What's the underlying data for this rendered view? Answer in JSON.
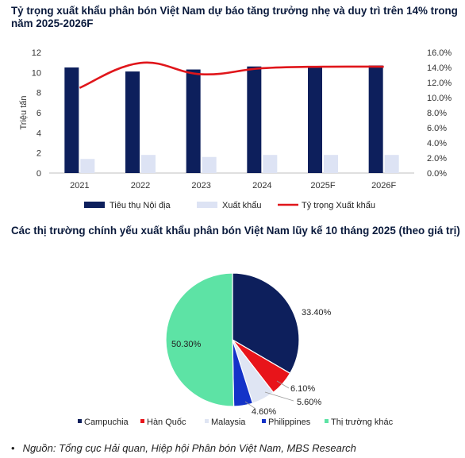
{
  "charts": {
    "title1": "Tỷ trọng xuất khẩu phân bón Việt Nam dự báo tăng trưởng nhẹ và duy trì trên 14% trong năm 2025-2026F",
    "title2": "Các thị trường chính yếu xuất khẩu phân bón Việt Nam lũy kế 10 tháng 2025 (theo giá trị)"
  },
  "source": {
    "bullet": "•",
    "text": "Nguồn: Tổng cục Hải quan, Hiệp hội Phân bón Việt Nam, MBS Research"
  },
  "colors": {
    "navy": "#0d1f5c",
    "light": "#dde3f4",
    "red": "#e0161b",
    "cambodia": "#0d1f5c",
    "korea": "#e8141a",
    "malaysia": "#dfe5f3",
    "philippines": "#1433c8",
    "others": "#5de3a5"
  },
  "chart_data": [
    {
      "type": "bar",
      "categories": [
        "2021",
        "2022",
        "2023",
        "2024",
        "2025F",
        "2026F"
      ],
      "ylabel": "Triệu tấn",
      "ylim": [
        0,
        12
      ],
      "yticks": [
        "0",
        "2",
        "4",
        "6",
        "8",
        "10",
        "12"
      ],
      "y2lim": [
        0,
        16
      ],
      "y2ticks": [
        "0.0%",
        "2.0%",
        "4.0%",
        "6.0%",
        "8.0%",
        "10.0%",
        "12.0%",
        "14.0%",
        "16.0%"
      ],
      "series": [
        {
          "name": "Tiêu thụ Nội địa",
          "kind": "bar",
          "values": [
            10.5,
            10.1,
            10.3,
            10.6,
            10.5,
            10.7
          ]
        },
        {
          "name": "Xuất khẩu",
          "kind": "bar",
          "values": [
            1.4,
            1.8,
            1.6,
            1.8,
            1.8,
            1.8
          ]
        },
        {
          "name": "Tỷ trọng Xuất khẩu",
          "kind": "line",
          "axis": "secondary",
          "values": [
            11.3,
            14.6,
            13.1,
            13.9,
            14.1,
            14.1
          ]
        }
      ],
      "legend": "bottom"
    },
    {
      "type": "pie",
      "categories": [
        "Campuchia",
        "Hàn Quốc",
        "Malaysia",
        "Philippines",
        "Thị trường khác"
      ],
      "values": [
        33.4,
        6.1,
        5.6,
        4.6,
        50.3
      ],
      "labels": [
        "33.40%",
        "6.10%",
        "5.60%",
        "4.60%",
        "50.30%"
      ],
      "legend": "bottom"
    }
  ]
}
